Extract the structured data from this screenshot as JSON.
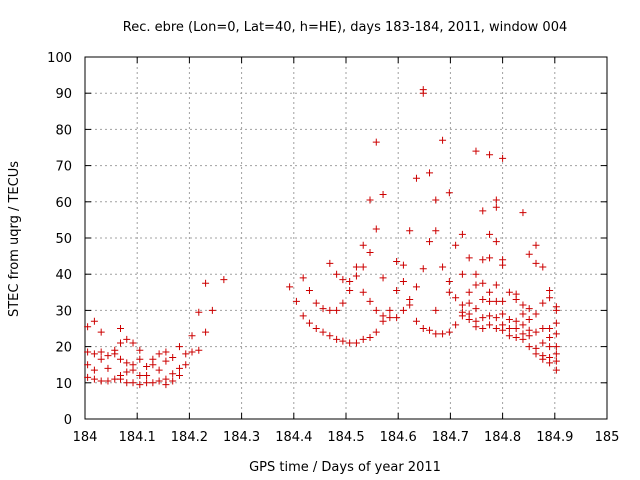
{
  "chart_data": {
    "type": "scatter",
    "title": "Rec. ebre (Lon=0, Lat=40, h=HE), days 183-184, 2011, window 004",
    "xlabel": "GPS time / Days of year 2011",
    "ylabel": "STEC from uqrg / TECUs",
    "xlim": [
      184,
      185
    ],
    "ylim": [
      0,
      100
    ],
    "xticks": [
      184,
      184.1,
      184.2,
      184.3,
      184.4,
      184.5,
      184.6,
      184.7,
      184.8,
      184.9,
      185
    ],
    "xtick_labels": [
      "184",
      "184.1",
      "184.2",
      "184.3",
      "184.4",
      "184.5",
      "184.6",
      "184.7",
      "184.8",
      "184.9",
      "185"
    ],
    "yticks": [
      0,
      10,
      20,
      30,
      40,
      50,
      60,
      70,
      80,
      90,
      100
    ],
    "ytick_labels": [
      "0",
      "10",
      "20",
      "30",
      "40",
      "50",
      "60",
      "70",
      "80",
      "90",
      "100"
    ],
    "grid": true,
    "legend": "none",
    "marker": "plus",
    "color": "#cc0000",
    "points": [
      [
        184.005,
        25.5
      ],
      [
        184.005,
        18.5
      ],
      [
        184.005,
        15.0
      ],
      [
        184.005,
        11.5
      ],
      [
        184.018,
        27.0
      ],
      [
        184.018,
        18.0
      ],
      [
        184.018,
        13.5
      ],
      [
        184.018,
        11.0
      ],
      [
        184.031,
        24.0
      ],
      [
        184.031,
        18.5
      ],
      [
        184.031,
        16.5
      ],
      [
        184.031,
        10.5
      ],
      [
        184.044,
        17.5
      ],
      [
        184.044,
        14.0
      ],
      [
        184.044,
        10.5
      ],
      [
        184.057,
        19.0
      ],
      [
        184.057,
        18.0
      ],
      [
        184.057,
        11.0
      ],
      [
        184.068,
        25.0
      ],
      [
        184.068,
        21.0
      ],
      [
        184.068,
        16.5
      ],
      [
        184.068,
        12.0
      ],
      [
        184.068,
        11.0
      ],
      [
        184.08,
        22.0
      ],
      [
        184.08,
        15.5
      ],
      [
        184.08,
        13.0
      ],
      [
        184.08,
        10.0
      ],
      [
        184.092,
        21.0
      ],
      [
        184.092,
        15.0
      ],
      [
        184.092,
        13.5
      ],
      [
        184.092,
        10.0
      ],
      [
        184.105,
        19.0
      ],
      [
        184.105,
        16.5
      ],
      [
        184.105,
        12.0
      ],
      [
        184.105,
        9.5
      ],
      [
        184.118,
        14.5
      ],
      [
        184.118,
        12.0
      ],
      [
        184.118,
        10.0
      ],
      [
        184.13,
        16.5
      ],
      [
        184.13,
        15.0
      ],
      [
        184.13,
        10.0
      ],
      [
        184.142,
        18.0
      ],
      [
        184.142,
        13.5
      ],
      [
        184.142,
        10.5
      ],
      [
        184.155,
        18.5
      ],
      [
        184.155,
        16.0
      ],
      [
        184.155,
        11.0
      ],
      [
        184.155,
        9.5
      ],
      [
        184.168,
        17.0
      ],
      [
        184.168,
        12.5
      ],
      [
        184.168,
        10.5
      ],
      [
        184.181,
        20.0
      ],
      [
        184.181,
        14.0
      ],
      [
        184.181,
        12.0
      ],
      [
        184.193,
        18.0
      ],
      [
        184.193,
        15.0
      ],
      [
        184.205,
        23.0
      ],
      [
        184.205,
        18.5
      ],
      [
        184.218,
        29.5
      ],
      [
        184.218,
        19.0
      ],
      [
        184.231,
        37.5
      ],
      [
        184.231,
        24.0
      ],
      [
        184.244,
        30.0
      ],
      [
        184.266,
        38.5
      ],
      [
        184.392,
        36.5
      ],
      [
        184.405,
        32.5
      ],
      [
        184.418,
        39.0
      ],
      [
        184.418,
        28.5
      ],
      [
        184.43,
        35.5
      ],
      [
        184.43,
        26.5
      ],
      [
        184.443,
        32.0
      ],
      [
        184.443,
        25.0
      ],
      [
        184.456,
        30.5
      ],
      [
        184.456,
        24.0
      ],
      [
        184.469,
        43.0
      ],
      [
        184.469,
        30.0
      ],
      [
        184.469,
        23.0
      ],
      [
        184.482,
        40.0
      ],
      [
        184.482,
        30.0
      ],
      [
        184.482,
        22.0
      ],
      [
        184.494,
        38.5
      ],
      [
        184.494,
        32.0
      ],
      [
        184.494,
        21.5
      ],
      [
        184.507,
        38.0
      ],
      [
        184.507,
        35.5
      ],
      [
        184.507,
        21.0
      ],
      [
        184.52,
        42.0
      ],
      [
        184.52,
        39.5
      ],
      [
        184.52,
        21.0
      ],
      [
        184.533,
        48.0
      ],
      [
        184.533,
        42.0
      ],
      [
        184.533,
        35.0
      ],
      [
        184.533,
        22.0
      ],
      [
        184.546,
        60.5
      ],
      [
        184.546,
        46.0
      ],
      [
        184.546,
        32.5
      ],
      [
        184.546,
        22.5
      ],
      [
        184.558,
        76.5
      ],
      [
        184.558,
        52.5
      ],
      [
        184.558,
        30.0
      ],
      [
        184.558,
        24.0
      ],
      [
        184.571,
        62.0
      ],
      [
        184.571,
        39.0
      ],
      [
        184.571,
        28.5
      ],
      [
        184.571,
        27.0
      ],
      [
        184.584,
        30.0
      ],
      [
        184.584,
        28.0
      ],
      [
        184.597,
        43.5
      ],
      [
        184.597,
        35.5
      ],
      [
        184.597,
        28.0
      ],
      [
        184.61,
        42.5
      ],
      [
        184.61,
        38.0
      ],
      [
        184.61,
        30.0
      ],
      [
        184.622,
        52.0
      ],
      [
        184.622,
        33.0
      ],
      [
        184.622,
        31.5
      ],
      [
        184.635,
        66.5
      ],
      [
        184.635,
        36.5
      ],
      [
        184.635,
        27.0
      ],
      [
        184.648,
        91.0
      ],
      [
        184.648,
        90.0
      ],
      [
        184.648,
        41.5
      ],
      [
        184.648,
        25.0
      ],
      [
        184.66,
        68.0
      ],
      [
        184.66,
        49.0
      ],
      [
        184.66,
        24.5
      ],
      [
        184.672,
        60.5
      ],
      [
        184.672,
        52.0
      ],
      [
        184.672,
        30.0
      ],
      [
        184.672,
        23.5
      ],
      [
        184.685,
        77.0
      ],
      [
        184.685,
        42.0
      ],
      [
        184.685,
        23.5
      ],
      [
        184.698,
        62.5
      ],
      [
        184.698,
        38.0
      ],
      [
        184.698,
        35.0
      ],
      [
        184.698,
        24.0
      ],
      [
        184.71,
        48.0
      ],
      [
        184.71,
        33.5
      ],
      [
        184.71,
        26.0
      ],
      [
        184.723,
        51.0
      ],
      [
        184.723,
        40.0
      ],
      [
        184.723,
        31.5
      ],
      [
        184.723,
        29.5
      ],
      [
        184.723,
        28.5
      ],
      [
        184.736,
        44.5
      ],
      [
        184.736,
        35.0
      ],
      [
        184.736,
        32.0
      ],
      [
        184.736,
        29.0
      ],
      [
        184.736,
        27.5
      ],
      [
        184.749,
        74.0
      ],
      [
        184.749,
        40.0
      ],
      [
        184.749,
        37.0
      ],
      [
        184.749,
        30.5
      ],
      [
        184.749,
        27.0
      ],
      [
        184.749,
        25.5
      ],
      [
        184.762,
        57.5
      ],
      [
        184.762,
        44.0
      ],
      [
        184.762,
        37.5
      ],
      [
        184.762,
        33.0
      ],
      [
        184.762,
        28.0
      ],
      [
        184.762,
        25.0
      ],
      [
        184.775,
        73.0
      ],
      [
        184.775,
        51.0
      ],
      [
        184.775,
        44.5
      ],
      [
        184.775,
        35.0
      ],
      [
        184.775,
        32.5
      ],
      [
        184.775,
        28.5
      ],
      [
        184.775,
        26.0
      ],
      [
        184.788,
        60.5
      ],
      [
        184.788,
        58.5
      ],
      [
        184.788,
        49.0
      ],
      [
        184.788,
        37.0
      ],
      [
        184.788,
        32.5
      ],
      [
        184.788,
        28.0
      ],
      [
        184.788,
        25.0
      ],
      [
        184.8,
        72.0
      ],
      [
        184.8,
        44.0
      ],
      [
        184.8,
        42.5
      ],
      [
        184.8,
        32.5
      ],
      [
        184.8,
        29.0
      ],
      [
        184.8,
        26.0
      ],
      [
        184.8,
        24.5
      ],
      [
        184.813,
        35.0
      ],
      [
        184.813,
        27.5
      ],
      [
        184.813,
        25.0
      ],
      [
        184.813,
        23.0
      ],
      [
        184.826,
        34.5
      ],
      [
        184.826,
        33.0
      ],
      [
        184.826,
        27.0
      ],
      [
        184.826,
        25.0
      ],
      [
        184.826,
        22.5
      ],
      [
        184.839,
        57.0
      ],
      [
        184.839,
        31.5
      ],
      [
        184.839,
        29.0
      ],
      [
        184.839,
        26.0
      ],
      [
        184.839,
        23.5
      ],
      [
        184.839,
        22.0
      ],
      [
        184.851,
        45.5
      ],
      [
        184.851,
        30.5
      ],
      [
        184.851,
        27.5
      ],
      [
        184.851,
        24.5
      ],
      [
        184.851,
        23.0
      ],
      [
        184.851,
        20.0
      ],
      [
        184.864,
        48.0
      ],
      [
        184.864,
        43.0
      ],
      [
        184.864,
        29.0
      ],
      [
        184.864,
        24.0
      ],
      [
        184.864,
        19.5
      ],
      [
        184.864,
        18.0
      ],
      [
        184.877,
        42.0
      ],
      [
        184.877,
        32.0
      ],
      [
        184.877,
        25.0
      ],
      [
        184.877,
        21.0
      ],
      [
        184.877,
        17.5
      ],
      [
        184.877,
        16.5
      ],
      [
        184.89,
        35.5
      ],
      [
        184.89,
        33.5
      ],
      [
        184.89,
        25.0
      ],
      [
        184.89,
        22.5
      ],
      [
        184.89,
        20.0
      ],
      [
        184.89,
        17.0
      ],
      [
        184.89,
        15.5
      ],
      [
        184.903,
        31.0
      ],
      [
        184.903,
        30.0
      ],
      [
        184.903,
        26.5
      ],
      [
        184.903,
        23.5
      ],
      [
        184.903,
        20.0
      ],
      [
        184.903,
        18.0
      ],
      [
        184.903,
        16.0
      ],
      [
        184.903,
        13.5
      ]
    ]
  }
}
